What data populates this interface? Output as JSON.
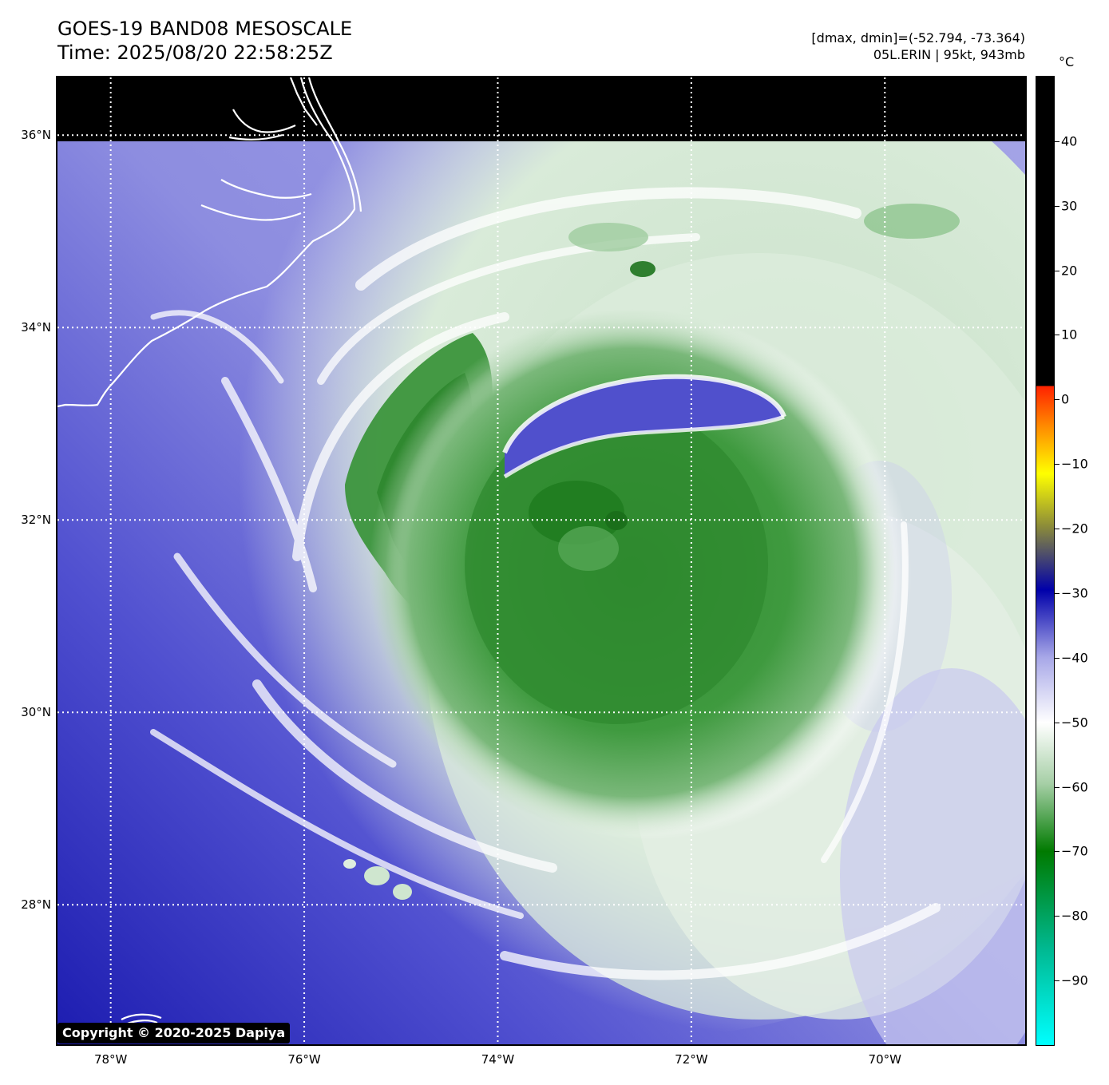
{
  "header": {
    "title_line1": "GOES-19 BAND08 MESOSCALE",
    "title_line2": "Time: 2025/08/20 22:58:25Z",
    "info_line1": "[dmax, dmin]=(-52.794, -73.364)",
    "info_line2": "05L.ERIN | 95kt, 943mb"
  },
  "map": {
    "lat_labels": [
      "36°N",
      "34°N",
      "32°N",
      "30°N",
      "28°N"
    ],
    "lon_labels": [
      "78°W",
      "76°W",
      "74°W",
      "72°W",
      "70°W"
    ],
    "lat_values": [
      36,
      34,
      32,
      30,
      28
    ],
    "lon_values": [
      -78,
      -76,
      -74,
      -72,
      -70
    ],
    "extent": {
      "lon_min": -78.55,
      "lon_max": -68.55,
      "lat_min": 26.55,
      "lat_max": 36.6
    },
    "storm_center": {
      "lon": -72.7,
      "lat": 31.5
    }
  },
  "colorbar": {
    "unit": "°C",
    "labels": [
      "40",
      "30",
      "20",
      "10",
      "0",
      "−10",
      "−20",
      "−30",
      "−40",
      "−50",
      "−60",
      "−70",
      "−80",
      "−90"
    ],
    "values": [
      40,
      30,
      20,
      10,
      0,
      -10,
      -20,
      -30,
      -40,
      -50,
      -60,
      -70,
      -80,
      -90
    ],
    "range": [
      50,
      -100
    ]
  },
  "colors": {
    "cbar_black": "#000000",
    "cbar_red": "#ff2200",
    "cbar_orange": "#ff8800",
    "cbar_yellow": "#ffff00",
    "cbar_olive": "#8a8a3a",
    "cbar_darkblue": "#0000aa",
    "cbar_lavender": "#a8a8e8",
    "cbar_white": "#ffffff",
    "cbar_lightgreen": "#a6cfa6",
    "cbar_green": "#007a00",
    "cbar_teal": "#00b890",
    "cbar_cyan": "#00ffff",
    "clear_sky_blue": "#5d5dd6",
    "cloud_green": "#3d9a3d"
  },
  "copyright": "Copyright © 2020-2025 Dapiya"
}
